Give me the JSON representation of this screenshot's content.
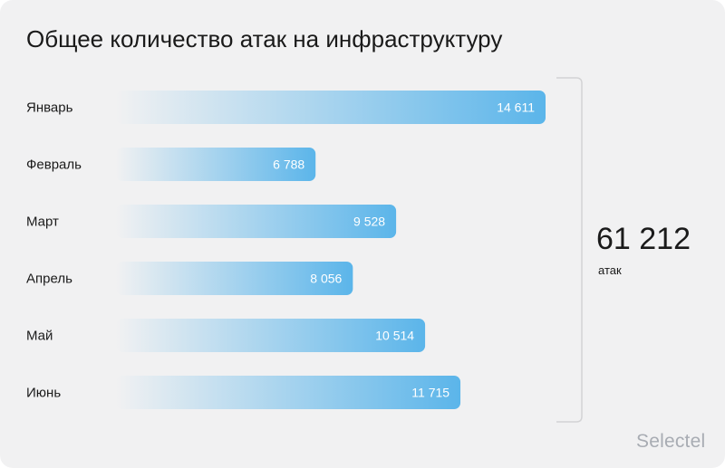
{
  "title": "Общее количество атак на инфраструктуру",
  "total": {
    "value": "61 212",
    "unit": "атак"
  },
  "brand": "Selectel",
  "colors": {
    "bar_start": "#f1f1f2",
    "bar_end": "#5bb5ea",
    "bracket": "#d3d3d5"
  },
  "chart_data": {
    "type": "bar",
    "orientation": "horizontal",
    "title": "Общее количество атак на инфраструктуру",
    "categories": [
      "Январь",
      "Февраль",
      "Март",
      "Апрель",
      "Май",
      "Июнь"
    ],
    "values": [
      14611,
      6788,
      9528,
      8056,
      10514,
      11715
    ],
    "value_labels": [
      "14 611",
      "6 788",
      "9 528",
      "8 056",
      "10 514",
      "11 715"
    ],
    "xlabel": "",
    "ylabel": "",
    "grid": false,
    "legend": "none"
  }
}
